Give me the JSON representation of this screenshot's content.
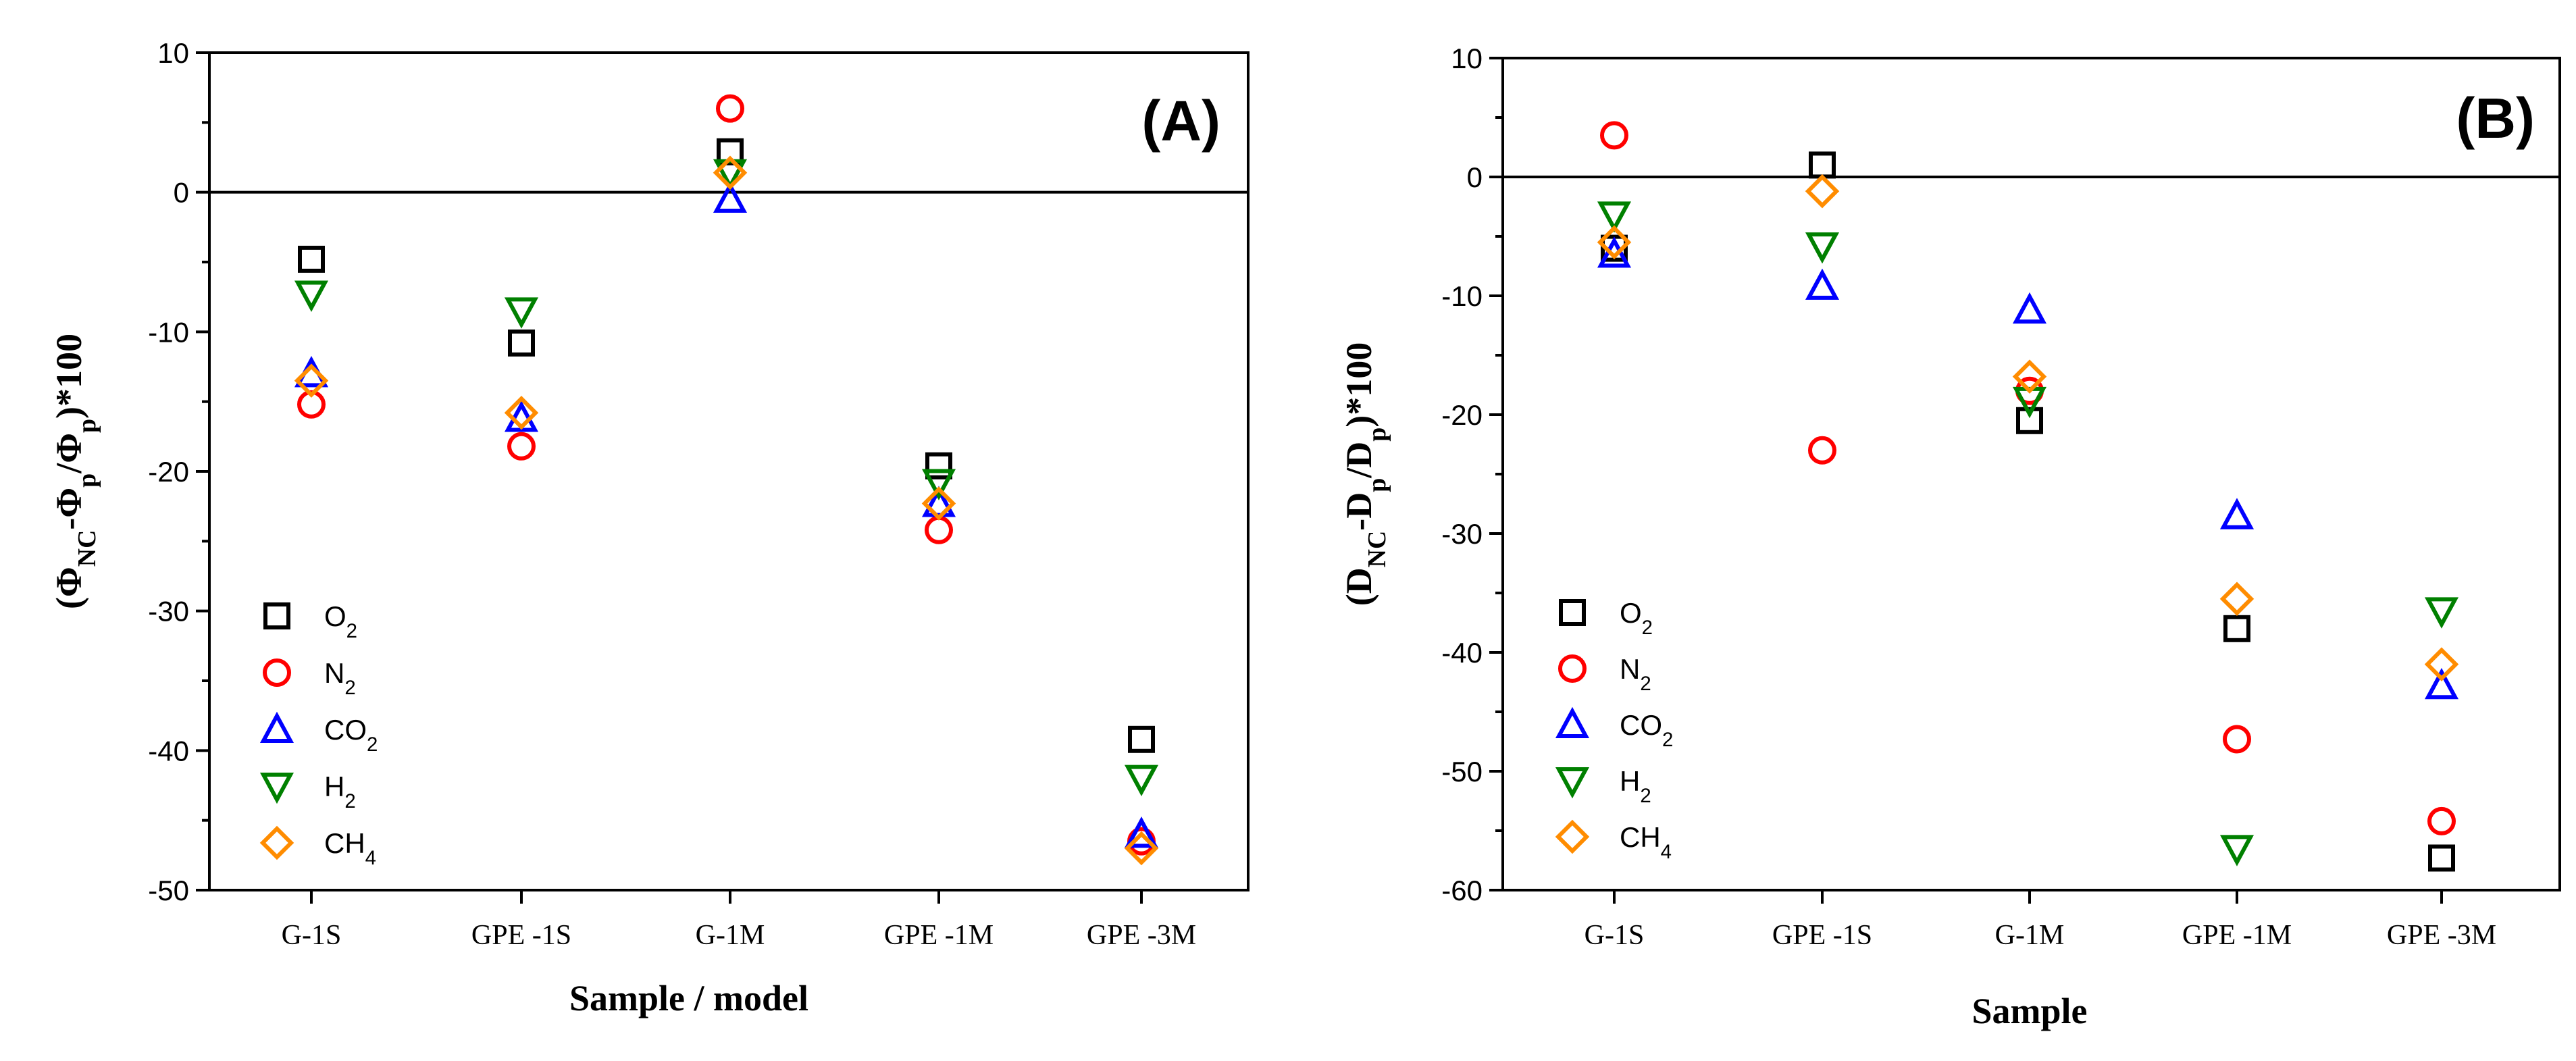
{
  "chart_data": [
    {
      "type": "scatter",
      "panel_label": "(A)",
      "title": "",
      "xlabel": "Sample / model",
      "ylabel": "(ΦNC-Φp/Φp)*100",
      "ylabel_parts": {
        "open": "(Φ",
        "sub1": "NC",
        "mid": "-Φ",
        "sub2": "p",
        "mid2": "/Φ",
        "sub3": "p",
        "close": ")*100"
      },
      "ylim": [
        -50,
        10
      ],
      "yticks": [
        10,
        0,
        -10,
        -20,
        -30,
        -40,
        -50
      ],
      "categories": [
        "G-1S",
        "GPE -1S",
        "G-1M",
        "GPE -1M",
        "GPE -3M"
      ],
      "reference_line_y": 0,
      "legend_position": "bottom-left",
      "series": [
        {
          "name": "O2",
          "label_base": "O",
          "label_sub": "2",
          "marker": "square",
          "color": "#000000",
          "values": [
            -4.8,
            -10.8,
            2.9,
            -19.6,
            -39.2
          ]
        },
        {
          "name": "N2",
          "label_base": "N",
          "label_sub": "2",
          "marker": "circle",
          "color": "#ff0000",
          "values": [
            -15.2,
            -18.2,
            6.0,
            -24.2,
            -46.5
          ]
        },
        {
          "name": "CO2",
          "label_base": "CO",
          "label_sub": "2",
          "marker": "triangle-up",
          "color": "#0000ff",
          "values": [
            -13.0,
            -16.2,
            -0.5,
            -22.3,
            -46.0
          ]
        },
        {
          "name": "H2",
          "label_base": "H",
          "label_sub": "2",
          "marker": "triangle-down",
          "color": "#008000",
          "values": [
            -7.3,
            -8.5,
            1.4,
            -20.8,
            -42.0
          ]
        },
        {
          "name": "CH4",
          "label_base": "CH",
          "label_sub": "4",
          "marker": "diamond",
          "color": "#ff8c00",
          "values": [
            -13.5,
            -15.8,
            1.4,
            -22.3,
            -47.0
          ]
        }
      ]
    },
    {
      "type": "scatter",
      "panel_label": "(B)",
      "title": "",
      "xlabel": "Sample",
      "ylabel": "(DNC-Dp/Dp)*100",
      "ylabel_parts": {
        "open": "(D",
        "sub1": "NC",
        "mid": "-D",
        "sub2": "p",
        "mid2": "/D",
        "sub3": "p",
        "close": ")*100"
      },
      "ylim": [
        -60,
        10
      ],
      "yticks": [
        10,
        0,
        -10,
        -20,
        -30,
        -40,
        -50,
        -60
      ],
      "categories": [
        "G-1S",
        "GPE -1S",
        "G-1M",
        "GPE -1M",
        "GPE -3M"
      ],
      "reference_line_y": 0,
      "legend_position": "bottom-left",
      "series": [
        {
          "name": "O2",
          "label_base": "O",
          "label_sub": "2",
          "marker": "square",
          "color": "#000000",
          "values": [
            -6.0,
            1.0,
            -20.5,
            -38.0,
            -57.3
          ]
        },
        {
          "name": "N2",
          "label_base": "N",
          "label_sub": "2",
          "marker": "circle",
          "color": "#ff0000",
          "values": [
            3.5,
            -23.0,
            -18.0,
            -47.3,
            -54.2
          ]
        },
        {
          "name": "CO2",
          "label_base": "CO",
          "label_sub": "2",
          "marker": "triangle-up",
          "color": "#0000ff",
          "values": [
            -6.5,
            -9.2,
            -11.2,
            -28.5,
            -42.8
          ]
        },
        {
          "name": "H2",
          "label_base": "H",
          "label_sub": "2",
          "marker": "triangle-down",
          "color": "#008000",
          "values": [
            -3.2,
            -5.8,
            -18.8,
            -56.5,
            -36.5
          ]
        },
        {
          "name": "CH4",
          "label_base": "CH",
          "label_sub": "4",
          "marker": "diamond",
          "color": "#ff8c00",
          "values": [
            -5.5,
            -1.2,
            -16.8,
            -35.5,
            -41.0
          ]
        }
      ]
    }
  ]
}
